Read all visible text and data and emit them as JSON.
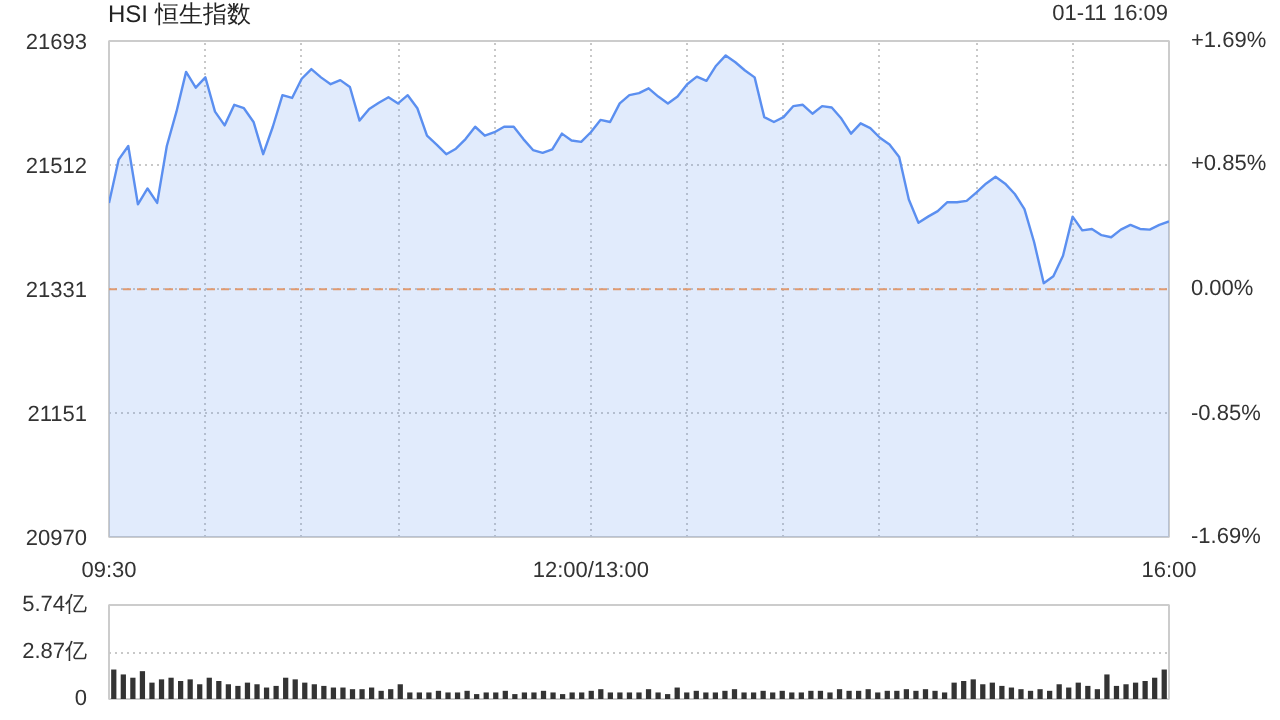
{
  "chart_data": [
    {
      "type": "area",
      "title": "HSI 恒生指数",
      "subtitle": "01-11 16:09",
      "grid": true,
      "categories": [
        "09:30",
        null,
        null,
        null,
        null,
        null,
        null,
        null,
        null,
        null,
        null,
        null,
        null,
        null,
        null,
        null,
        null,
        null,
        null,
        null,
        null,
        null,
        null,
        null,
        null,
        null,
        null,
        null,
        null,
        null,
        null,
        null,
        null,
        null,
        null,
        null,
        null,
        null,
        null,
        null,
        null,
        null,
        null,
        null,
        null,
        null,
        null,
        null,
        null,
        null,
        "12:00/13:00",
        null,
        null,
        null,
        null,
        null,
        null,
        null,
        null,
        null,
        null,
        null,
        null,
        null,
        null,
        null,
        null,
        null,
        null,
        null,
        null,
        null,
        null,
        null,
        null,
        null,
        null,
        null,
        null,
        null,
        null,
        null,
        null,
        null,
        null,
        null,
        null,
        null,
        null,
        null,
        null,
        null,
        null,
        null,
        null,
        null,
        null,
        null,
        null,
        null,
        null,
        null,
        null,
        null,
        null,
        null,
        null,
        null,
        null,
        null,
        "16:00"
      ],
      "series": [
        {
          "color": "#5b8ff0",
          "values": [
            21457,
            21520,
            21540,
            21455,
            21478,
            21457,
            21540,
            21590,
            21648,
            21625,
            21640,
            21590,
            21570,
            21600,
            21595,
            21575,
            21528,
            21568,
            21614,
            21610,
            21638,
            21652,
            21640,
            21630,
            21636,
            21626,
            21577,
            21594,
            21603,
            21611,
            21602,
            21614,
            21595,
            21555,
            21542,
            21528,
            21536,
            21550,
            21568,
            21555,
            21560,
            21568,
            21568,
            21550,
            21534,
            21530,
            21535,
            21558,
            21548,
            21546,
            21560,
            21578,
            21575,
            21602,
            21614,
            21617,
            21624,
            21612,
            21602,
            21612,
            21630,
            21641,
            21635,
            21657,
            21672,
            21662,
            21650,
            21640,
            21582,
            21575,
            21582,
            21598,
            21600,
            21587,
            21598,
            21596,
            21580,
            21558,
            21573,
            21566,
            21552,
            21542,
            21524,
            21462,
            21428,
            21437,
            21445,
            21458,
            21458,
            21460,
            21472,
            21485,
            21495,
            21485,
            21470,
            21448,
            21400,
            21340,
            21350,
            21380,
            21437,
            21417,
            21419,
            21410,
            21407,
            21418,
            21425,
            21419,
            21418,
            21425,
            21430
          ]
        }
      ],
      "ylim": [
        20970,
        21693
      ],
      "yticks": [
        20970,
        21151,
        21331,
        21512,
        21693
      ],
      "y2lim": [
        -1.69,
        1.69
      ],
      "y2ticks": [
        {
          "value": -1.69,
          "label": "-1.69%"
        },
        {
          "value": -0.85,
          "label": "-0.85%"
        },
        {
          "value": 0,
          "label": "0.00%"
        },
        {
          "value": 0.85,
          "label": "+0.85%"
        },
        {
          "value": 1.69,
          "label": "+1.69%"
        }
      ],
      "ref_lines": [
        {
          "axis": "y",
          "value": 21331,
          "color": "#e09a70",
          "line_style": "dashed"
        }
      ]
    },
    {
      "type": "bar",
      "grid": "y",
      "tick_labels": "y",
      "categories": [
        null,
        null,
        null,
        null,
        null,
        null,
        null,
        null,
        null,
        null,
        null,
        null,
        null,
        null,
        null,
        null,
        null,
        null,
        null,
        null,
        null,
        null,
        null,
        null,
        null,
        null,
        null,
        null,
        null,
        null,
        null,
        null,
        null,
        null,
        null,
        null,
        null,
        null,
        null,
        null,
        null,
        null,
        null,
        null,
        null,
        null,
        null,
        null,
        null,
        null,
        null,
        null,
        null,
        null,
        null,
        null,
        null,
        null,
        null,
        null,
        null,
        null,
        null,
        null,
        null,
        null,
        null,
        null,
        null,
        null,
        null,
        null,
        null,
        null,
        null,
        null,
        null,
        null,
        null,
        null,
        null,
        null,
        null,
        null,
        null,
        null,
        null,
        null,
        null,
        null,
        null,
        null,
        null,
        null,
        null,
        null,
        null,
        null,
        null,
        null,
        null,
        null,
        null,
        null,
        null,
        null,
        null,
        null,
        null,
        null,
        null
      ],
      "series": [
        {
          "color": "#333333",
          "values": [
            1.8,
            1.5,
            1.3,
            1.7,
            1.0,
            1.2,
            1.3,
            1.1,
            1.2,
            0.9,
            1.3,
            1.1,
            0.9,
            0.8,
            1.0,
            0.9,
            0.7,
            0.8,
            1.3,
            1.2,
            1.0,
            0.9,
            0.8,
            0.7,
            0.7,
            0.6,
            0.6,
            0.7,
            0.5,
            0.6,
            0.9,
            0.4,
            0.4,
            0.4,
            0.5,
            0.4,
            0.4,
            0.5,
            0.3,
            0.4,
            0.4,
            0.5,
            0.3,
            0.4,
            0.4,
            0.5,
            0.4,
            0.3,
            0.4,
            0.4,
            0.5,
            0.6,
            0.4,
            0.4,
            0.4,
            0.4,
            0.6,
            0.4,
            0.3,
            0.7,
            0.4,
            0.5,
            0.4,
            0.4,
            0.5,
            0.6,
            0.4,
            0.4,
            0.5,
            0.4,
            0.5,
            0.4,
            0.4,
            0.5,
            0.5,
            0.4,
            0.6,
            0.5,
            0.5,
            0.6,
            0.4,
            0.5,
            0.5,
            0.6,
            0.5,
            0.6,
            0.5,
            0.4,
            1.0,
            1.1,
            1.2,
            0.9,
            1.0,
            0.8,
            0.7,
            0.6,
            0.5,
            0.6,
            0.5,
            0.9,
            0.7,
            1.0,
            0.8,
            0.6,
            1.5,
            0.8,
            0.9,
            1.0,
            1.1,
            1.3,
            1.8
          ]
        }
      ],
      "ylim": [
        0,
        5.74
      ],
      "yticks": [
        0,
        {
          "value": 2.87,
          "label": "2.87亿"
        },
        {
          "value": 5.74,
          "label": "5.74亿"
        }
      ]
    }
  ]
}
